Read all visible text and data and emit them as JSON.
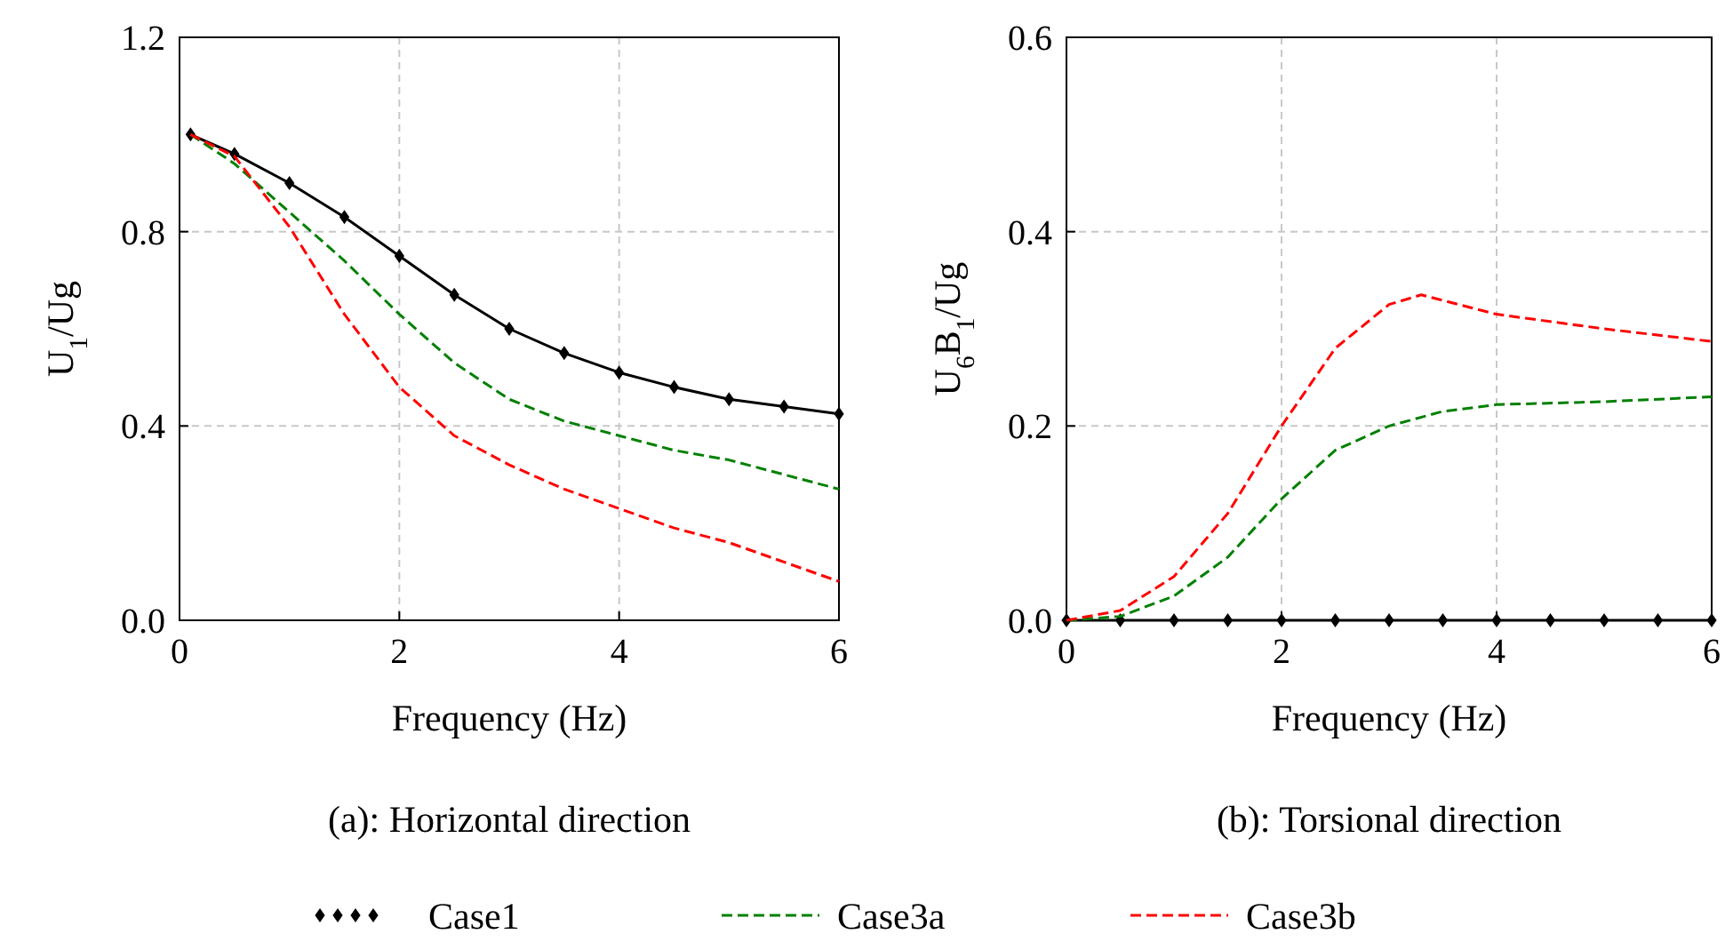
{
  "chart_data": [
    {
      "type": "line",
      "title": "(a): Horizontal direction",
      "xlabel": "Frequency (Hz)",
      "ylabel": "U$_{1}$/Ug",
      "xlim": [
        0,
        6
      ],
      "ylim": [
        0,
        1.2
      ],
      "xticks": [
        0,
        2,
        4,
        6
      ],
      "yticks": [
        {
          "value": 0,
          "label": "0.0"
        },
        0.4,
        0.8,
        1.2
      ],
      "grid": true,
      "legend": "bottom",
      "series": [
        {
          "name": "Case1",
          "color": "#000000",
          "marker": "diamond",
          "line_style": "solid",
          "x": [
            0.1,
            0.5,
            1,
            1.5,
            2,
            2.5,
            3,
            3.5,
            4,
            4.5,
            5,
            5.5,
            6
          ],
          "values": [
            1.0,
            0.96,
            0.9,
            0.83,
            0.75,
            0.67,
            0.6,
            0.55,
            0.51,
            0.48,
            0.455,
            0.44,
            0.425
          ]
        },
        {
          "name": "Case3a",
          "color": "#008000",
          "marker": "none",
          "line_style": "dashed",
          "x": [
            0.1,
            0.5,
            1,
            1.5,
            2,
            2.5,
            3,
            3.5,
            4,
            4.5,
            5,
            5.5,
            6
          ],
          "values": [
            1.0,
            0.94,
            0.84,
            0.74,
            0.63,
            0.53,
            0.455,
            0.41,
            0.38,
            0.35,
            0.33,
            0.3,
            0.27
          ]
        },
        {
          "name": "Case3b",
          "color": "#ff0000",
          "marker": "none",
          "line_style": "dashed",
          "x": [
            0.1,
            0.5,
            1,
            1.5,
            2,
            2.5,
            3,
            3.5,
            4,
            4.5,
            5,
            5.5,
            6
          ],
          "values": [
            1.0,
            0.955,
            0.81,
            0.63,
            0.48,
            0.38,
            0.32,
            0.27,
            0.23,
            0.19,
            0.16,
            0.12,
            0.08
          ]
        }
      ]
    },
    {
      "type": "line",
      "title": "(b): Torsional direction",
      "xlabel": "Frequency (Hz)",
      "ylabel": "U$_{6}$B$_{1}$/Ug",
      "xlim": [
        0,
        6
      ],
      "ylim": [
        0,
        0.6
      ],
      "xticks": [
        0,
        2,
        4,
        6
      ],
      "yticks": [
        {
          "value": 0,
          "label": "0.0"
        },
        0.2,
        0.4,
        0.6
      ],
      "grid": true,
      "series": [
        {
          "color": "#000000",
          "marker": "diamond",
          "line_style": "solid",
          "x": [
            0,
            0.5,
            1,
            1.5,
            2,
            2.5,
            3,
            3.5,
            4,
            4.5,
            5,
            5.5,
            6
          ],
          "values": [
            0,
            0,
            0,
            0,
            0,
            0,
            0,
            0,
            0,
            0,
            0,
            0,
            0
          ]
        },
        {
          "color": "#008000",
          "marker": "none",
          "line_style": "dashed",
          "x": [
            0,
            0.5,
            1,
            1.5,
            2,
            2.5,
            3,
            3.5,
            4,
            5,
            6
          ],
          "values": [
            0,
            0.004,
            0.025,
            0.065,
            0.125,
            0.175,
            0.2,
            0.215,
            0.222,
            0.225,
            0.23
          ]
        },
        {
          "color": "#ff0000",
          "marker": "none",
          "line_style": "dashed",
          "x": [
            0,
            0.5,
            1,
            1.5,
            2,
            2.5,
            3,
            3.3,
            4,
            5,
            6
          ],
          "values": [
            0,
            0.01,
            0.045,
            0.11,
            0.2,
            0.28,
            0.325,
            0.335,
            0.315,
            0.3,
            0.287
          ]
        }
      ]
    }
  ]
}
